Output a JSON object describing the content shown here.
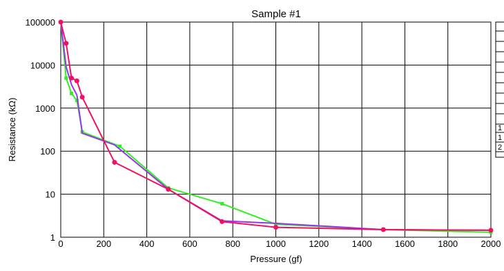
{
  "chart_data": {
    "type": "line",
    "title": "Sample #1",
    "xlabel": "Pressure (gf)",
    "ylabel": "Resistance (kΩ)",
    "xscale": "linear",
    "yscale": "log",
    "xlim": [
      0,
      2000
    ],
    "ylim": [
      1,
      100000
    ],
    "x_ticks": [
      "0",
      "200",
      "400",
      "600",
      "800",
      "1000",
      "1200",
      "1400",
      "1600",
      "1800",
      "2000"
    ],
    "y_ticks": [
      "1",
      "10",
      "100",
      "1000",
      "10000",
      "100000"
    ],
    "grid": true,
    "legend_text": [
      "1",
      "1",
      "2"
    ],
    "series": [
      {
        "color": "#33ee22",
        "marker": "square",
        "points": [
          [
            0,
            100000
          ],
          [
            25,
            5000
          ],
          [
            50,
            2200
          ],
          [
            75,
            1500
          ],
          [
            100,
            280
          ],
          [
            275,
            130
          ],
          [
            500,
            14
          ],
          [
            750,
            6
          ],
          [
            1000,
            2
          ],
          [
            1500,
            1.5
          ],
          [
            2000,
            1.3
          ]
        ]
      },
      {
        "color": "#9933ee",
        "marker": "none",
        "points": [
          [
            0,
            100000
          ],
          [
            25,
            9000
          ],
          [
            50,
            3500
          ],
          [
            75,
            2000
          ],
          [
            100,
            260
          ],
          [
            250,
            140
          ],
          [
            500,
            13
          ],
          [
            750,
            2.4
          ],
          [
            1000,
            2.1
          ],
          [
            1500,
            1.5
          ],
          [
            2000,
            1.45
          ]
        ]
      },
      {
        "color": "#ee1166",
        "marker": "circle",
        "points": [
          [
            0,
            100000
          ],
          [
            25,
            32000
          ],
          [
            50,
            5000
          ],
          [
            75,
            4300
          ],
          [
            100,
            1800
          ],
          [
            250,
            55
          ],
          [
            500,
            13
          ],
          [
            750,
            2.3
          ],
          [
            1000,
            1.7
          ],
          [
            1500,
            1.5
          ],
          [
            2000,
            1.45
          ]
        ]
      }
    ]
  }
}
